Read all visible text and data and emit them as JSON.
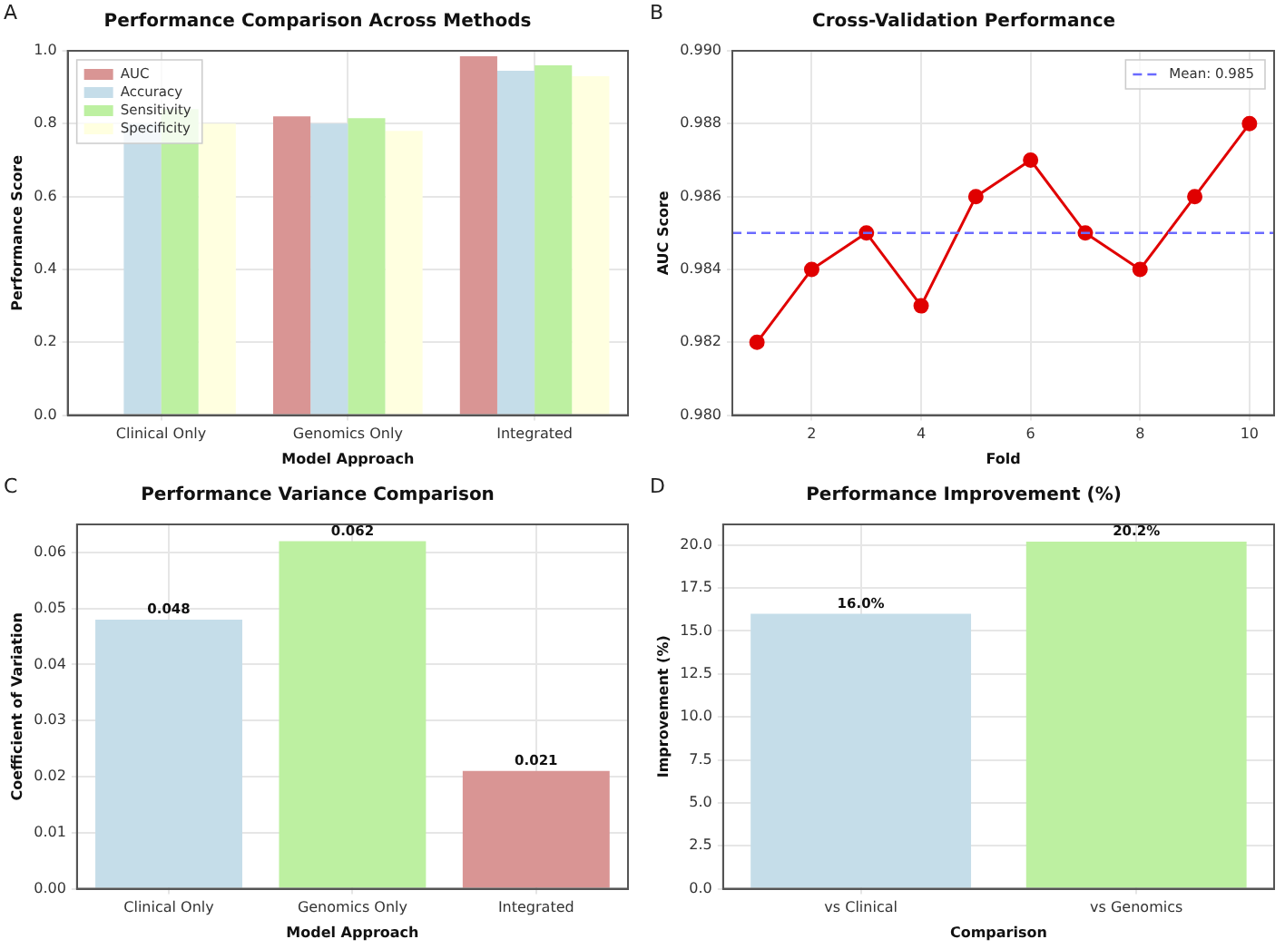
{
  "chart_data": [
    {
      "type": "bar",
      "title": "Performance Comparison Across Methods",
      "xlabel": "Model Approach",
      "ylabel": "Performance Score",
      "annotations": [
        "A"
      ],
      "categories": [
        "Clinical Only",
        "Genomics Only",
        "Integrated"
      ],
      "series": [
        {
          "name": "AUC",
          "color": "#d99594",
          "values": [
            null,
            0.82,
            0.985
          ]
        },
        {
          "name": "Accuracy",
          "color": "#c5dde9",
          "values": [
            0.8,
            0.8,
            0.945
          ]
        },
        {
          "name": "Sensitivity",
          "color": "#bdf0a1",
          "values": [
            0.84,
            0.815,
            0.96
          ]
        },
        {
          "name": "Specificity",
          "color": "#ffffe0",
          "values": [
            0.8,
            0.78,
            0.93
          ]
        }
      ],
      "ylim": [
        0,
        1
      ],
      "yticks": [
        {
          "value": 0,
          "label": "0.0"
        },
        {
          "value": 0.2,
          "label": "0.2"
        },
        {
          "value": 0.4,
          "label": "0.4"
        },
        {
          "value": 0.6,
          "label": "0.6"
        },
        {
          "value": 0.8,
          "label": "0.8"
        },
        {
          "value": 1,
          "label": "1.0"
        }
      ],
      "grid": true,
      "legend": "top left"
    },
    {
      "type": "line",
      "title": "Cross-Validation Performance",
      "xlabel": "Fold",
      "ylabel": "AUC Score",
      "annotations": [
        "B"
      ],
      "x": [
        1,
        2,
        3,
        4,
        5,
        6,
        7,
        8,
        9,
        10
      ],
      "series": [
        {
          "color": "#e00000",
          "values": [
            0.982,
            0.984,
            0.985,
            0.983,
            0.986,
            0.987,
            0.985,
            0.984,
            0.986,
            0.988
          ]
        }
      ],
      "xlim": [
        0.55,
        10.45
      ],
      "xticks": [
        2,
        4,
        6,
        8,
        10
      ],
      "ylim": [
        0.98,
        0.99
      ],
      "yticks": [
        {
          "value": 0.98,
          "label": "0.980"
        },
        {
          "value": 0.982,
          "label": "0.982"
        },
        {
          "value": 0.984,
          "label": "0.984"
        },
        {
          "value": 0.986,
          "label": "0.986"
        },
        {
          "value": 0.988,
          "label": "0.988"
        },
        {
          "value": 0.99,
          "label": "0.990"
        }
      ],
      "ref_lines": [
        {
          "axis": "y",
          "value": 0.985,
          "label": "Mean: 0.985",
          "color": "#6a6aff",
          "line_style": "dashed"
        }
      ],
      "grid": true,
      "legend": "top right",
      "marker": "circle",
      "line_style": "solid"
    },
    {
      "type": "bar",
      "title": "Performance Variance Comparison",
      "xlabel": "Model Approach",
      "ylabel": "Coefficient of Variation",
      "annotations": [
        "C"
      ],
      "categories": [
        "Clinical Only",
        "Genomics Only",
        "Integrated"
      ],
      "values": [
        0.048,
        0.062,
        0.021
      ],
      "colors": [
        "#c5dde9",
        "#bdf0a1",
        "#d99594"
      ],
      "ylim": [
        0,
        0.065
      ],
      "yticks": [
        {
          "value": 0,
          "label": "0.00"
        },
        {
          "value": 0.01,
          "label": "0.01"
        },
        {
          "value": 0.02,
          "label": "0.02"
        },
        {
          "value": 0.03,
          "label": "0.03"
        },
        {
          "value": 0.04,
          "label": "0.04"
        },
        {
          "value": 0.05,
          "label": "0.05"
        },
        {
          "value": 0.06,
          "label": "0.06"
        }
      ],
      "grid": true,
      "data_labels": true
    },
    {
      "type": "bar",
      "title": "Performance Improvement (%)",
      "xlabel": "Comparison",
      "ylabel": "Improvement (%)",
      "annotations": [
        "D"
      ],
      "categories": [
        "vs Clinical",
        "vs Genomics"
      ],
      "values": [
        16.0,
        20.2
      ],
      "value_labels": [
        "16.0%",
        "20.2%"
      ],
      "colors": [
        "#c5dde9",
        "#bdf0a1"
      ],
      "ylim": [
        0,
        21.2
      ],
      "yticks": [
        {
          "value": 0,
          "label": "0.0"
        },
        {
          "value": 2.5,
          "label": "2.5"
        },
        {
          "value": 5,
          "label": "5.0"
        },
        {
          "value": 7.5,
          "label": "7.5"
        },
        {
          "value": 10,
          "label": "10.0"
        },
        {
          "value": 12.5,
          "label": "12.5"
        },
        {
          "value": 15,
          "label": "15.0"
        },
        {
          "value": 17.5,
          "label": "17.5"
        },
        {
          "value": 20,
          "label": "20.0"
        }
      ],
      "grid": true
    }
  ]
}
